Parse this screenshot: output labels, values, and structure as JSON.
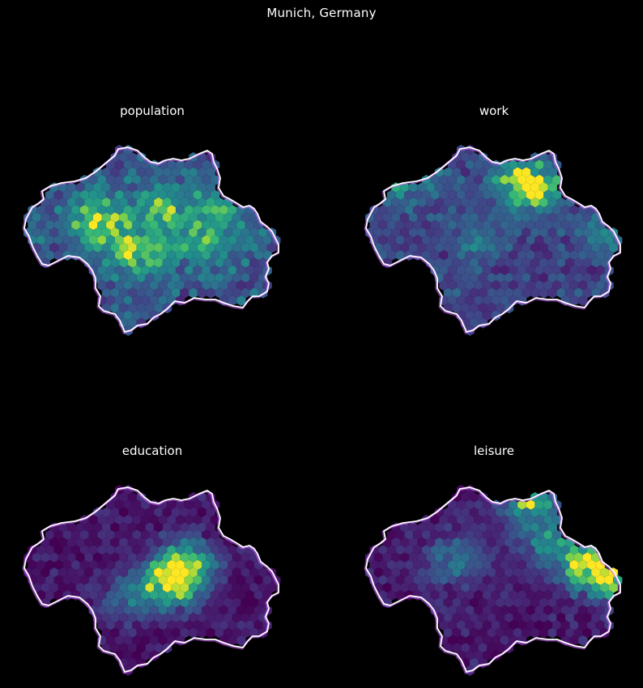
{
  "suptitle": "Munich, Germany",
  "panels": [
    {
      "title": "population",
      "seed": 11,
      "colormap": "viridis",
      "hotspots": [
        [
          0.55,
          0.4,
          0.42
        ],
        [
          0.3,
          0.45,
          0.55
        ],
        [
          0.45,
          0.6,
          0.5
        ],
        [
          0.7,
          0.55,
          0.35
        ],
        [
          0.78,
          0.35,
          0.3
        ]
      ],
      "base": 0.35
    },
    {
      "title": "work",
      "seed": 23,
      "colormap": "viridis",
      "hotspots": [
        [
          0.62,
          0.28,
          0.9
        ],
        [
          0.18,
          0.2,
          0.9
        ],
        [
          0.45,
          0.55,
          0.25
        ],
        [
          0.92,
          0.52,
          0.3
        ]
      ],
      "base": 0.25
    },
    {
      "title": "education",
      "seed": 37,
      "colormap": "viridis",
      "hotspots": [
        [
          0.57,
          0.55,
          0.95
        ],
        [
          0.63,
          0.45,
          0.55
        ],
        [
          0.4,
          0.62,
          0.3
        ]
      ],
      "base": 0.08
    },
    {
      "title": "leisure",
      "seed": 53,
      "colormap": "viridis",
      "hotspots": [
        [
          0.62,
          0.13,
          0.8
        ],
        [
          0.7,
          0.35,
          0.5
        ],
        [
          0.85,
          0.48,
          0.9
        ],
        [
          0.35,
          0.45,
          0.4
        ],
        [
          0.98,
          0.55,
          0.55
        ]
      ],
      "base": 0.1
    }
  ],
  "colors": {
    "background": "#000000",
    "outline": "#ffffff",
    "outline_shadow": "#cc66ff"
  }
}
